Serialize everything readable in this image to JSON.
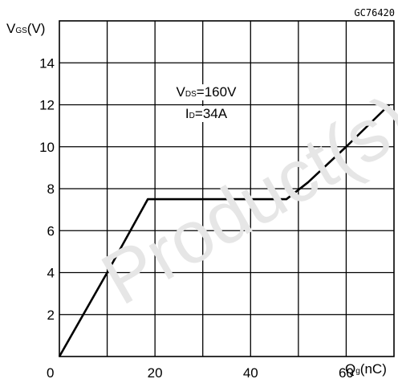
{
  "chart_code": "GC76420",
  "watermark": "Product(s)",
  "chart_data": {
    "type": "line",
    "title": "",
    "ylabel_main": "V",
    "ylabel_sub": "GS",
    "ylabel_unit": "(V)",
    "xlabel_main": "Q",
    "xlabel_sub": "g",
    "xlabel_unit": "(nC)",
    "xlim": [
      0,
      70
    ],
    "ylim": [
      0,
      16
    ],
    "xticks": [
      0,
      20,
      40,
      60
    ],
    "yticks": [
      2,
      4,
      6,
      8,
      10,
      12,
      14
    ],
    "grid": true,
    "annotations": [
      {
        "main": "V",
        "sub": "DS",
        "rest": "=160V"
      },
      {
        "main": "I",
        "sub": "D",
        "rest": "=34A"
      }
    ],
    "series": [
      {
        "x": [
          0,
          10,
          18.5,
          47.5,
          52,
          60,
          69
        ],
        "y": [
          0,
          4,
          7.5,
          7.5,
          8.3,
          10,
          12
        ]
      }
    ]
  }
}
